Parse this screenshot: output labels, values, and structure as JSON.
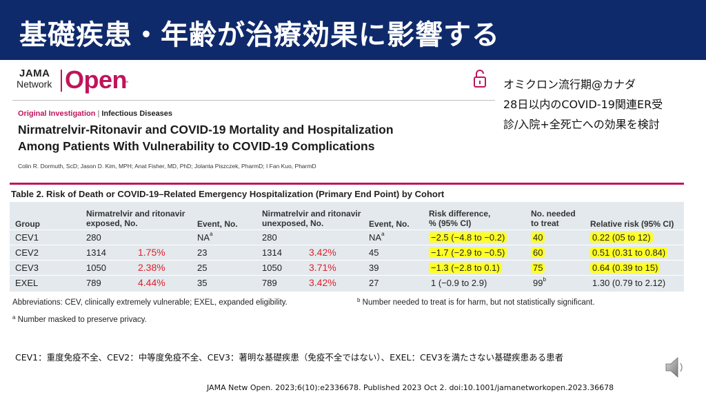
{
  "slide": {
    "title": "基礎疾患・年齢が治療効果に影響する",
    "side_note": [
      "オミクロン流行期@カナダ",
      "28日以内のCOVID-19関連ER受",
      "診/入院+全死亡への効果を検討"
    ],
    "definitions": "CEV1：重度免疫不全、CEV2：中等度免疫不全、CEV3：著明な基礎疾患（免疫不全ではない）、EXEL：CEV3を満たさない基礎疾患ある患者",
    "citation": "JAMA Netw Open. 2023;6(10):e2336678. Published 2023 Oct 2. doi:10.1001/jamanetworkopen.2023.36678"
  },
  "journal": {
    "logo_line1": "JAMA",
    "logo_line2": "Network",
    "logo_open": "Open",
    "logo_tm": "™",
    "category": "Original Investigation",
    "separator": "|",
    "subcategory": "Infectious Diseases",
    "title_line1": "Nirmatrelvir-Ritonavir and COVID-19 Mortality and Hospitalization",
    "title_line2": "Among Patients With Vulnerability to COVID-19 Complications",
    "authors": "Colin R. Dormuth, ScD; Jason D. Kim, MPH; Anat Fisher, MD, PhD; Jolanta Piszczek, PharmD; I Fan Kuo, PharmD"
  },
  "table": {
    "caption": "Table 2. Risk of Death or COVID-19–Related Emergency Hospitalization (Primary End Point) by Cohort",
    "headers": {
      "group": "Group",
      "exposed_1": "Nirmatrelvir and ritonavir",
      "exposed_2": "exposed, No.",
      "event_exposed": "Event, No.",
      "unexposed_1": "Nirmatrelvir and ritonavir",
      "unexposed_2": "unexposed, No.",
      "event_unexposed": "Event, No.",
      "risk_1": "Risk difference,",
      "risk_2": "% (95% CI)",
      "nnt_1": "No. needed",
      "nnt_2": "to treat",
      "rr": "Relative risk (95% CI)"
    },
    "rows": [
      {
        "group": "CEV1",
        "exposed": "280",
        "exposed_pct": "",
        "event_exposed": "NA",
        "event_exposed_sup": "a",
        "unexposed": "280",
        "unexposed_pct": "",
        "event_unexposed": "NA",
        "event_unexposed_sup": "a",
        "risk": "−2.5 (−4.8 to −0.2)",
        "nnt": "40",
        "nnt_sup": "",
        "rr": "0.22 (05 to 12)"
      },
      {
        "group": "CEV2",
        "exposed": "1314",
        "exposed_pct": "1.75%",
        "event_exposed": "23",
        "event_exposed_sup": "",
        "unexposed": "1314",
        "unexposed_pct": "3.42%",
        "event_unexposed": "45",
        "event_unexposed_sup": "",
        "risk": "−1.7 (−2.9 to −0.5)",
        "nnt": "60",
        "nnt_sup": "",
        "rr": "0.51 (0.31 to 0.84)"
      },
      {
        "group": "CEV3",
        "exposed": "1050",
        "exposed_pct": "2.38%",
        "event_exposed": "25",
        "event_exposed_sup": "",
        "unexposed": "1050",
        "unexposed_pct": "3.71%",
        "event_unexposed": "39",
        "event_unexposed_sup": "",
        "risk": "−1.3 (−2.8 to 0.1)",
        "nnt": "75",
        "nnt_sup": "",
        "rr": "0.64 (0.39 to 15)"
      },
      {
        "group": "EXEL",
        "exposed": "789",
        "exposed_pct": "4.44%",
        "event_exposed": "35",
        "event_exposed_sup": "",
        "unexposed": "789",
        "unexposed_pct": "3.42%",
        "event_unexposed": "27",
        "event_unexposed_sup": "",
        "risk": "1 (−0.9 to 2.9)",
        "nnt": "99",
        "nnt_sup": "b",
        "rr": "1.30 (0.79 to 2.12)"
      }
    ],
    "footnote_abbr": "Abbreviations: CEV, clinically extremely vulnerable; EXEL, expanded eligibility.",
    "footnote_a_mark": "a",
    "footnote_a": "Number masked to preserve privacy.",
    "footnote_b_mark": "b",
    "footnote_b": "Number needed to treat is for harm, but not statistically significant."
  },
  "icons": {
    "lock": "open-lock-icon",
    "speaker": "speaker-icon"
  },
  "colors": {
    "title_bar": "#0f2a6b",
    "accent": "#c0145b",
    "highlight": "#ffff24",
    "pct_red": "#e0202e",
    "table_bg": "#e3e9ec"
  }
}
